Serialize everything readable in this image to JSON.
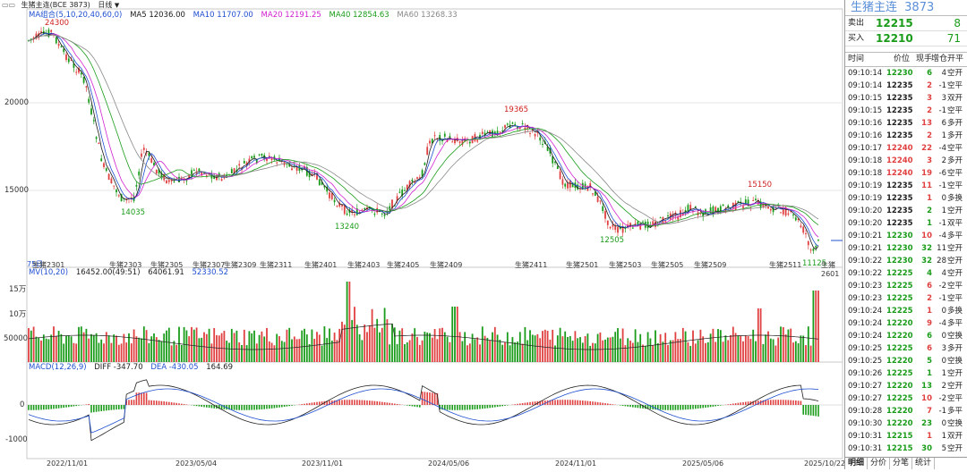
{
  "toolbar": {
    "symbol": "生猪主连(BCE 3873)",
    "period": "日线"
  },
  "main_legend": {
    "name": "MA组合(5,10,20,40,60,0)",
    "items": [
      {
        "label": "MA5 12036.00",
        "color": "#1a1a1a"
      },
      {
        "label": "MA10 11707.00",
        "color": "#2050d0"
      },
      {
        "label": "MA20 12191.25",
        "color": "#d020d0"
      },
      {
        "label": "MA40 12854.63",
        "color": "#1a9c1a"
      },
      {
        "label": "MA60 13268.33",
        "color": "#888888"
      }
    ]
  },
  "vol_legend": {
    "name": "MV(10,20)",
    "items": [
      {
        "label": "16452.00(49:51)",
        "color": "#222"
      },
      {
        "label": "64061.91",
        "color": "#222"
      },
      {
        "label": "52330.52",
        "color": "#2050d0"
      }
    ]
  },
  "macd_legend": {
    "name": "MACD(12,26,9)",
    "items": [
      {
        "label": "DIFF -347.70",
        "color": "#222"
      },
      {
        "label": "DEA -430.05",
        "color": "#2050d0"
      },
      {
        "label": "164.69",
        "color": "#222"
      }
    ]
  },
  "price_axis": [
    "20000",
    "15000"
  ],
  "vol_axis": [
    "15万",
    "10万",
    "50000"
  ],
  "macd_axis": [
    "0",
    "-1000"
  ],
  "annotations": [
    {
      "text": "24300",
      "color": "#d02020"
    },
    {
      "text": "14035",
      "color": "#1a9c1a"
    },
    {
      "text": "13240",
      "color": "#1a9c1a"
    },
    {
      "text": "19365",
      "color": "#d02020"
    },
    {
      "text": "12505",
      "color": "#1a9c1a"
    },
    {
      "text": "15150",
      "color": "#d02020"
    },
    {
      "text": "11125",
      "color": "#1a9c1a"
    }
  ],
  "contract_labels": [
    "生猪2301",
    "生猪2303",
    "生猪2305",
    "生猪2307",
    "生猪2309",
    "生猪2311",
    "生猪2401",
    "生猪2403",
    "生猪2405",
    "生猪2409",
    "生猪2411",
    "生猪2501",
    "生猪2503",
    "生猪2505",
    "生猪2509",
    "生猪2511",
    "生猪2601"
  ],
  "contract_prefix": "75日",
  "date_axis": [
    "2022/11/01",
    "2023/05/04",
    "2023/11/01",
    "2024/05/06",
    "2024/11/01",
    "2025/05/06",
    "2025/10/22"
  ],
  "panel": {
    "name": "生猪主连",
    "code": "3873",
    "sell_label": "卖出",
    "sell_price": "12215",
    "sell_vol": "8",
    "buy_label": "买入",
    "buy_price": "12210",
    "buy_vol": "71",
    "headers": [
      "时间",
      "价位",
      "现手",
      "增仓",
      "开平"
    ],
    "ticks": [
      {
        "time": "09:10:14",
        "price": "12230",
        "qty": "6",
        "oi": "4",
        "type": "空开"
      },
      {
        "time": "09:10:14",
        "price": "12235",
        "qty": "2",
        "oi": "-1",
        "type": "空平"
      },
      {
        "time": "09:10:15",
        "price": "12235",
        "qty": "3",
        "oi": "3",
        "type": "双开"
      },
      {
        "time": "09:10:15",
        "price": "12235",
        "qty": "2",
        "oi": "-1",
        "type": "空平"
      },
      {
        "time": "09:10:16",
        "price": "12235",
        "qty": "13",
        "oi": "6",
        "type": "多开"
      },
      {
        "time": "09:10:16",
        "price": "12235",
        "qty": "2",
        "oi": "1",
        "type": "多开"
      },
      {
        "time": "09:10:17",
        "price": "12240",
        "qty": "22",
        "oi": "-4",
        "type": "空平"
      },
      {
        "time": "09:10:18",
        "price": "12240",
        "qty": "3",
        "oi": "2",
        "type": "多开"
      },
      {
        "time": "09:10:18",
        "price": "12240",
        "qty": "19",
        "oi": "-6",
        "type": "空平"
      },
      {
        "time": "09:10:19",
        "price": "12235",
        "qty": "11",
        "oi": "-1",
        "type": "空平"
      },
      {
        "time": "09:10:19",
        "price": "12235",
        "qty": "1",
        "oi": "0",
        "type": "多换"
      },
      {
        "time": "09:10:20",
        "price": "12235",
        "qty": "2",
        "oi": "1",
        "type": "空开"
      },
      {
        "time": "09:10:20",
        "price": "12235",
        "qty": "1",
        "oi": "-1",
        "type": "双平"
      },
      {
        "time": "09:10:21",
        "price": "12230",
        "qty": "10",
        "oi": "-4",
        "type": "多平"
      },
      {
        "time": "09:10:21",
        "price": "12230",
        "qty": "32",
        "oi": "11",
        "type": "空开"
      },
      {
        "time": "09:10:22",
        "price": "12230",
        "qty": "32",
        "oi": "28",
        "type": "空开"
      },
      {
        "time": "09:10:22",
        "price": "12225",
        "qty": "4",
        "oi": "4",
        "type": "空开"
      },
      {
        "time": "09:10:23",
        "price": "12225",
        "qty": "6",
        "oi": "-2",
        "type": "空平"
      },
      {
        "time": "09:10:23",
        "price": "12225",
        "qty": "2",
        "oi": "-1",
        "type": "空平"
      },
      {
        "time": "09:10:24",
        "price": "12225",
        "qty": "1",
        "oi": "0",
        "type": "多换"
      },
      {
        "time": "09:10:24",
        "price": "12220",
        "qty": "9",
        "oi": "-4",
        "type": "多平"
      },
      {
        "time": "09:10:24",
        "price": "12220",
        "qty": "6",
        "oi": "0",
        "type": "空换"
      },
      {
        "time": "09:10:25",
        "price": "12225",
        "qty": "6",
        "oi": "3",
        "type": "多开"
      },
      {
        "time": "09:10:25",
        "price": "12220",
        "qty": "5",
        "oi": "0",
        "type": "空换"
      },
      {
        "time": "09:10:26",
        "price": "12225",
        "qty": "1",
        "oi": "1",
        "type": "空开"
      },
      {
        "time": "09:10:27",
        "price": "12220",
        "qty": "13",
        "oi": "2",
        "type": "空开"
      },
      {
        "time": "09:10:27",
        "price": "12225",
        "qty": "10",
        "oi": "-2",
        "type": "空平"
      },
      {
        "time": "09:10:28",
        "price": "12220",
        "qty": "7",
        "oi": "-1",
        "type": "多平"
      },
      {
        "time": "09:10:30",
        "price": "12220",
        "qty": "23",
        "oi": "0",
        "type": "空换"
      },
      {
        "time": "09:10:31",
        "price": "12215",
        "qty": "1",
        "oi": "1",
        "type": "双开"
      },
      {
        "time": "09:10:31",
        "price": "12215",
        "qty": "30",
        "oi": "5",
        "type": "空开"
      }
    ],
    "tabs": [
      "明细",
      "分价",
      "分笔",
      "统计"
    ]
  },
  "colors": {
    "up": "#e04040",
    "down": "#1a9c1a",
    "ma_blue": "#2050d0",
    "ma_pink": "#d020d0",
    "ma_green": "#1a9c1a",
    "ma_gray": "#888888",
    "flat": "#222222"
  }
}
